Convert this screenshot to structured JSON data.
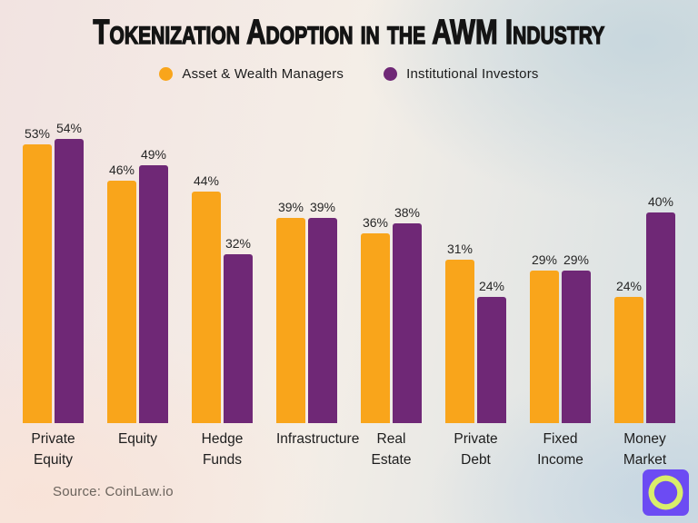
{
  "title": "Tokenization Adoption in the AWM Industry",
  "chart_data": {
    "type": "bar",
    "title": "Tokenization Adoption in the AWM Industry",
    "categories": [
      "Private\nEquity",
      "Equity",
      "Hedge\nFunds",
      "Infrastructure",
      "Real\nEstate",
      "Private\nDebt",
      "Fixed\nIncome",
      "Money\nMarket"
    ],
    "series": [
      {
        "name": "Asset & Wealth Managers",
        "color": "#F9A51B",
        "values": [
          53,
          46,
          44,
          39,
          36,
          31,
          29,
          24
        ]
      },
      {
        "name": "Institutional Investors",
        "color": "#6F2876",
        "values": [
          54,
          49,
          32,
          39,
          38,
          24,
          29,
          40
        ]
      }
    ],
    "value_suffix": "%",
    "xlabel": "",
    "ylabel": "",
    "ylim": [
      0,
      60
    ],
    "grid": false,
    "data_labels": true,
    "legend_position": "top"
  },
  "footer": {
    "source": "Source: CoinLaw.io"
  },
  "logo": {
    "name": "coinlaw-logo",
    "bg_color": "#6C4BF3",
    "circle_color": "#D9EE6A",
    "needle_color": "#6C4BF3"
  },
  "colors": {
    "background_left": "#F2E3E1",
    "background_right": "#D6E0E3",
    "title_text": "#141414",
    "label_text": "#1D1D1D",
    "source_text": "#6B635C"
  }
}
